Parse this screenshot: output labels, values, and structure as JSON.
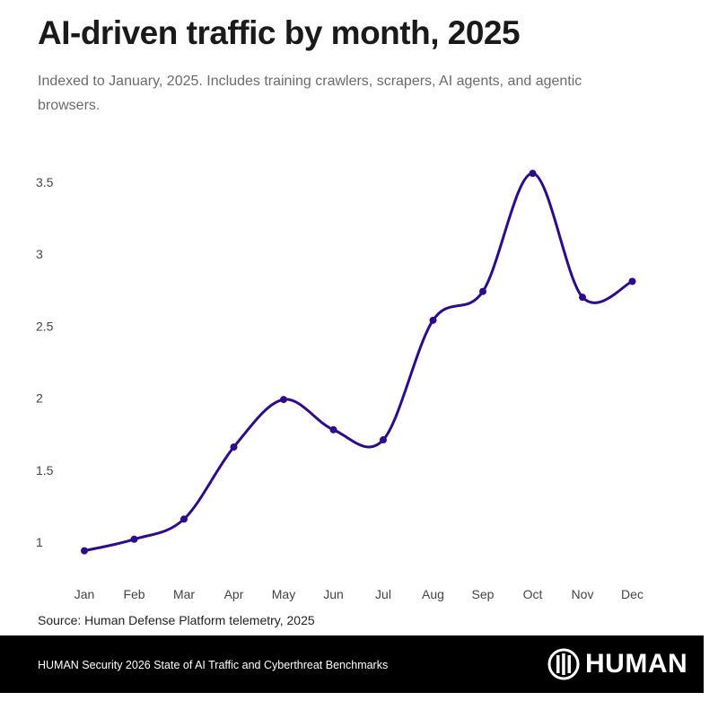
{
  "header": {
    "title": "AI-driven traffic by month, 2025",
    "subtitle": "Indexed to January, 2025. Includes training crawlers, scrapers, AI agents, and agentic browsers."
  },
  "chart_data": {
    "type": "line",
    "title": "AI-driven traffic by month, 2025",
    "categories": [
      "Jan",
      "Feb",
      "Mar",
      "Apr",
      "May",
      "Jun",
      "Jul",
      "Aug",
      "Sep",
      "Oct",
      "Nov",
      "Dec"
    ],
    "series": [
      {
        "values": [
          0.94,
          1.02,
          1.16,
          1.66,
          1.99,
          1.78,
          1.71,
          2.54,
          2.74,
          3.56,
          2.7,
          2.81
        ]
      }
    ],
    "yticks": [
      "1",
      "1.5",
      "2",
      "2.5",
      "3",
      "3.5"
    ],
    "ytick_values": [
      1,
      1.5,
      2,
      2.5,
      3,
      3.5
    ],
    "ylim": [
      0.9,
      3.6
    ],
    "grid": false,
    "smooth": true,
    "color": "#2e0a8c",
    "xlabel": "",
    "ylabel": ""
  },
  "source": "Source: Human Defense Platform telemetry, 2025",
  "footer": {
    "text": "HUMAN Security 2026 State of AI Traffic and Cyberthreat Benchmarks",
    "logo": "HUMAN"
  }
}
